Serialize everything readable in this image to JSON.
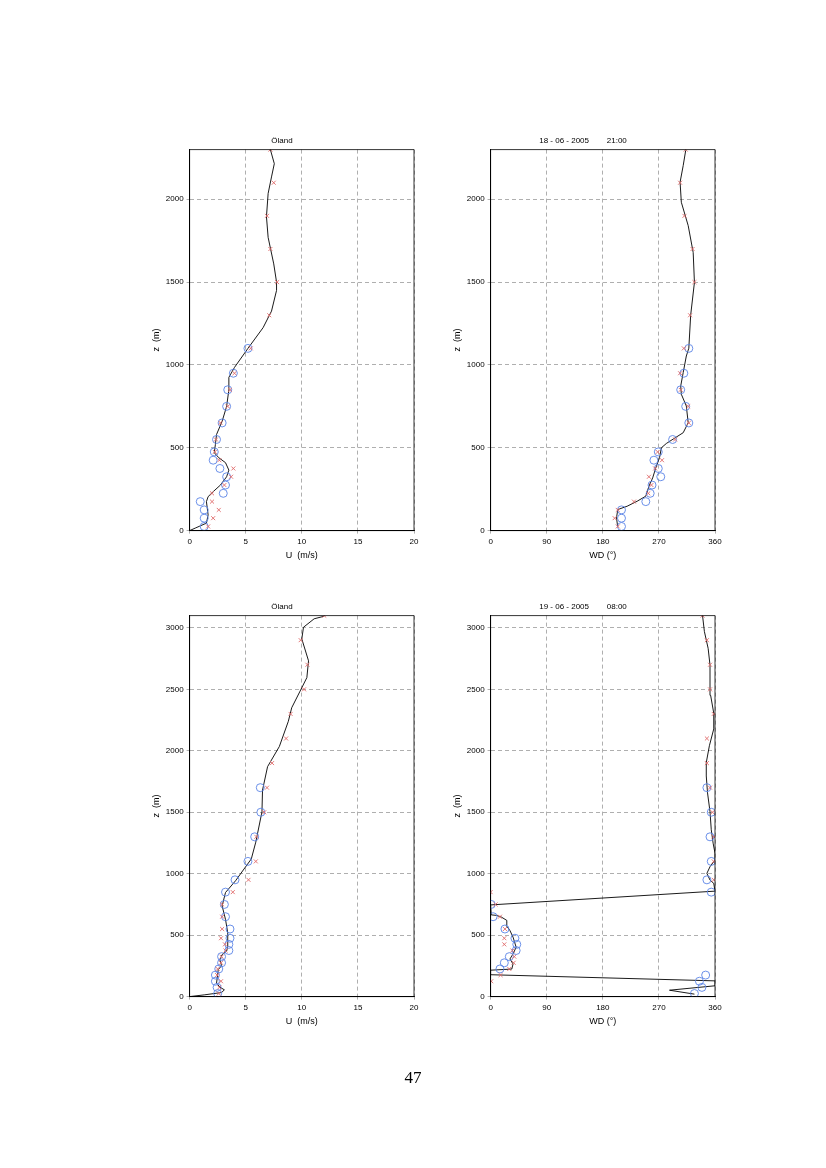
{
  "chart_data": [
    {
      "type": "line",
      "title": "Öland",
      "xlabel": "U  (m/s)",
      "ylabel": "z  (m)",
      "xlim": [
        0,
        20
      ],
      "xticks": [
        0,
        5,
        10,
        15,
        20
      ],
      "ylim": [
        0,
        2300
      ],
      "yticks": [
        0,
        500,
        1000,
        1500,
        2000
      ],
      "grid": true,
      "legend": false,
      "series": [
        {
          "color": "#000000",
          "x": [
            0,
            0.5,
            1.5,
            1.65,
            1.5,
            1.65,
            2.1,
            2.75,
            3.3,
            3.5,
            3.2,
            2.6,
            2.2,
            2.3,
            2.4,
            2.9,
            3.3,
            3.5,
            3.5,
            4.0,
            5.2,
            6.55,
            7.3,
            7.75,
            7.75,
            7.5,
            7.0,
            6.85,
            7.0,
            7.3,
            7.55,
            7.2
          ],
          "values": [
            0,
            15,
            45,
            95,
            175,
            205,
            235,
            275,
            325,
            365,
            410,
            440,
            470,
            520,
            580,
            660,
            750,
            850,
            925,
            985,
            1100,
            1225,
            1325,
            1450,
            1500,
            1610,
            1770,
            1895,
            2035,
            2135,
            2215,
            2300
          ]
        },
        {
          "type": "scatter",
          "marker": "circle",
          "color": "#5b84e6",
          "x": [
            1.3,
            1.3,
            1.3,
            0.95,
            3.0,
            3.2,
            3.3,
            2.7,
            2.1,
            2.2,
            2.4,
            2.9,
            3.3,
            3.4,
            3.9,
            5.2
          ],
          "values": [
            25,
            75,
            125,
            175,
            225,
            275,
            325,
            375,
            425,
            475,
            550,
            650,
            750,
            850,
            950,
            1100
          ]
        },
        {
          "type": "scatter",
          "marker": "cross",
          "color": "#e06a6a",
          "x": [
            1.65,
            2.1,
            2.6,
            2.0,
            2.0,
            3.1,
            3.7,
            3.9,
            2.65,
            2.25,
            2.35,
            2.75,
            3.4,
            3.6,
            4.0,
            5.45,
            7.1,
            7.8,
            7.2,
            6.9,
            7.5,
            7.2
          ],
          "values": [
            25,
            75,
            125,
            175,
            225,
            275,
            325,
            375,
            425,
            475,
            550,
            650,
            750,
            850,
            950,
            1100,
            1300,
            1500,
            1700,
            1900,
            2100,
            2300
          ]
        }
      ]
    },
    {
      "type": "line",
      "title": "18 - 06 - 2005        21:00",
      "xlabel": "WD (°)",
      "ylabel": "z  (m)",
      "xlim": [
        0,
        360
      ],
      "xticks": [
        0,
        90,
        180,
        270,
        360
      ],
      "ylim": [
        0,
        2300
      ],
      "yticks": [
        0,
        500,
        1000,
        1500,
        2000
      ],
      "grid": true,
      "legend": false,
      "series": [
        {
          "color": "#000000",
          "x": [
            204,
            202,
            204,
            219,
            235,
            249,
            254,
            260,
            265,
            271,
            274,
            282,
            296,
            309,
            317,
            314,
            306,
            305,
            309,
            314,
            318,
            321,
            327,
            325,
            317,
            306,
            304,
            309,
            313
          ],
          "values": [
            20,
            77,
            127,
            147,
            177,
            208,
            268,
            318,
            379,
            440,
            500,
            526,
            560,
            591,
            651,
            752,
            823,
            873,
            954,
            1054,
            1101,
            1302,
            1498,
            1679,
            1841,
            1982,
            2103,
            2204,
            2295
          ]
        },
        {
          "type": "scatter",
          "marker": "circle",
          "color": "#5b84e6",
          "x": [
            210,
            210,
            210,
            249,
            256,
            259,
            273,
            269,
            262,
            269,
            292,
            318,
            313,
            305,
            310,
            318
          ],
          "values": [
            25,
            75,
            125,
            175,
            225,
            275,
            325,
            375,
            425,
            475,
            550,
            650,
            750,
            850,
            950,
            1100
          ]
        },
        {
          "type": "scatter",
          "marker": "cross",
          "color": "#e06a6a",
          "x": [
            204,
            199,
            204,
            230,
            253,
            258,
            254,
            264,
            275,
            268,
            296,
            318,
            317,
            305,
            304,
            310,
            320,
            327,
            324,
            311,
            304,
            313
          ],
          "values": [
            25,
            75,
            125,
            175,
            225,
            275,
            325,
            375,
            425,
            475,
            550,
            650,
            750,
            850,
            950,
            1100,
            1300,
            1500,
            1700,
            1900,
            2100,
            2300
          ]
        }
      ]
    },
    {
      "type": "line",
      "title": "Öland",
      "xlabel": "U  (m/s)",
      "ylabel": "z  (m)",
      "xlim": [
        0,
        20
      ],
      "xticks": [
        0,
        5,
        10,
        15,
        20
      ],
      "ylim": [
        0,
        3100
      ],
      "yticks": [
        0,
        500,
        1000,
        1500,
        2000,
        2500,
        3000
      ],
      "grid": true,
      "legend": false,
      "series": [
        {
          "color": "#000000",
          "x": [
            0,
            1.3,
            2.85,
            3.1,
            2.7,
            2.4,
            2.5,
            2.55,
            2.85,
            2.7,
            2.9,
            3.3,
            3.4,
            3.4,
            3.2,
            2.9,
            3.2,
            4.1,
            4.85,
            5.5,
            5.9,
            6.45,
            6.5,
            6.95,
            8.0,
            8.8,
            9.1,
            9.85,
            10.45,
            10.6,
            10.0,
            10.15,
            11.1,
            12.0
          ],
          "values": [
            0,
            14,
            33,
            55,
            77,
            109,
            178,
            219,
            251,
            300,
            342,
            369,
            410,
            519,
            628,
            738,
            847,
            943,
            1038,
            1120,
            1257,
            1503,
            1680,
            1871,
            2035,
            2240,
            2350,
            2486,
            2595,
            2732,
            2910,
            3005,
            3074,
            3095
          ]
        },
        {
          "type": "scatter",
          "marker": "circle",
          "color": "#5b84e6",
          "x": [
            2.5,
            2.45,
            2.3,
            2.3,
            2.6,
            2.85,
            2.85,
            3.5,
            3.5,
            3.6,
            3.6,
            3.2,
            3.1,
            3.2,
            4.05,
            5.2,
            5.8,
            6.35,
            6.3
          ],
          "values": [
            25,
            75,
            125,
            175,
            225,
            275,
            325,
            375,
            425,
            475,
            550,
            650,
            750,
            850,
            950,
            1100,
            1300,
            1500,
            1700
          ]
        },
        {
          "type": "scatter",
          "marker": "cross",
          "color": "#e06a6a",
          "x": [
            2.6,
            2.65,
            2.8,
            2.45,
            2.5,
            2.8,
            2.85,
            3.2,
            3.15,
            2.8,
            2.9,
            2.9,
            2.9,
            3.85,
            5.25,
            5.9,
            5.95,
            6.65,
            6.9,
            7.35,
            8.6,
            9.0,
            10.2,
            10.5,
            9.9,
            12.0
          ],
          "values": [
            25,
            75,
            125,
            175,
            225,
            275,
            325,
            375,
            425,
            475,
            550,
            650,
            750,
            850,
            950,
            1100,
            1300,
            1500,
            1700,
            1900,
            2100,
            2300,
            2500,
            2700,
            2900,
            3100
          ]
        }
      ]
    },
    {
      "type": "line",
      "title": "19 - 06 - 2005        08:00",
      "xlabel": "WD (°)",
      "ylabel": "z  (m)",
      "xlim": [
        0,
        360
      ],
      "xticks": [
        0,
        90,
        180,
        270,
        360
      ],
      "ylim": [
        0,
        3100
      ],
      "yticks": [
        0,
        500,
        1000,
        1500,
        2000,
        2500,
        3000
      ],
      "grid": true,
      "legend": false,
      "annotations": [
        "47"
      ],
      "series": [
        {
          "color": "#000000",
          "x": [
            327,
            287,
            360,
            360,
            0,
            0,
            34,
            36,
            31,
            36,
            41,
            36,
            31,
            25,
            26,
            17,
            9,
            1,
            0,
            360,
            358,
            352,
            347,
            352,
            360,
            360,
            357,
            354,
            352,
            348,
            346,
            346,
            351,
            358,
            358,
            353,
            352,
            349,
            343,
            340
          ],
          "values": [
            20,
            52,
            88,
            128,
            178,
            215,
            224,
            265,
            306,
            347,
            402,
            484,
            538,
            579,
            620,
            648,
            661,
            665,
            746,
            858,
            921,
            948,
            1003,
            1057,
            1112,
            1167,
            1248,
            1358,
            1505,
            1658,
            1795,
            1904,
            2041,
            2178,
            2306,
            2451,
            2697,
            2833,
            2970,
            3100
          ]
        },
        {
          "type": "scatter",
          "marker": "circle",
          "color": "#5b84e6",
          "x": [
            327,
            339,
            335,
            345,
            15,
            22,
            30,
            41,
            42,
            39,
            23,
            4,
            1,
            354,
            347,
            354,
            352,
            354,
            347
          ],
          "values": [
            25,
            75,
            125,
            175,
            225,
            275,
            325,
            375,
            425,
            475,
            550,
            650,
            750,
            850,
            950,
            1100,
            1300,
            1500,
            1700
          ]
        },
        {
          "type": "scatter",
          "marker": "cross",
          "color": "#e06a6a",
          "x": [
            1,
            16,
            30,
            37,
            38,
            35,
            22,
            22,
            23,
            15,
            8,
            0,
            358,
            358,
            358,
            356,
            352,
            347,
            347,
            358,
            352,
            352,
            347,
            340
          ],
          "values": [
            125,
            175,
            225,
            275,
            325,
            375,
            425,
            475,
            550,
            650,
            750,
            850,
            950,
            1100,
            1300,
            1500,
            1700,
            1900,
            2100,
            2300,
            2500,
            2700,
            2900,
            3100
          ]
        }
      ]
    }
  ]
}
